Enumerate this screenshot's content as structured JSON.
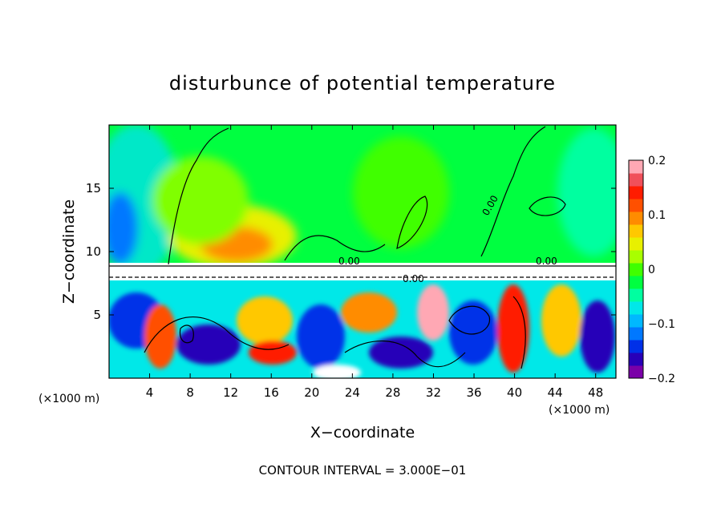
{
  "chart_data": {
    "type": "heatmap",
    "title": "disturbunce of potential temperature",
    "xlabel": "X−coordinate",
    "ylabel": "Z−coordinate",
    "x_unit_left": "(×1000 m)",
    "x_unit_right": "(×1000 m)",
    "xlim": [
      0,
      50
    ],
    "ylim": [
      0,
      20
    ],
    "x_ticks": [
      4,
      8,
      12,
      16,
      20,
      24,
      28,
      32,
      36,
      40,
      44,
      48
    ],
    "x_tick_labels": [
      "4",
      "8",
      "12",
      "16",
      "20",
      "24",
      "28",
      "32",
      "36",
      "40",
      "44",
      "48"
    ],
    "y_ticks": [
      5,
      10,
      15
    ],
    "y_tick_labels": [
      "5",
      "10",
      "15"
    ],
    "footer": "CONTOUR INTERVAL = 3.000E−01",
    "contour_labels": [
      "0.00",
      "0.00",
      "0.00",
      "0.00"
    ],
    "colorbar": {
      "range": [
        -0.2,
        0.2
      ],
      "ticks": [
        0.2,
        0.1,
        0,
        -0.1,
        -0.2
      ],
      "tick_labels": [
        "0.2",
        "0.1",
        "0",
        "−0.1",
        "−0.2"
      ],
      "colors": [
        "#7a00a8",
        "#2800b8",
        "#0030e8",
        "#0078ff",
        "#00b8ff",
        "#00e8e8",
        "#00ffa0",
        "#00ff40",
        "#40ff00",
        "#a8ff00",
        "#e8f000",
        "#ffc800",
        "#ff8c00",
        "#ff5000",
        "#ff1c00",
        "#f0505a",
        "#ffa8b4"
      ]
    }
  }
}
